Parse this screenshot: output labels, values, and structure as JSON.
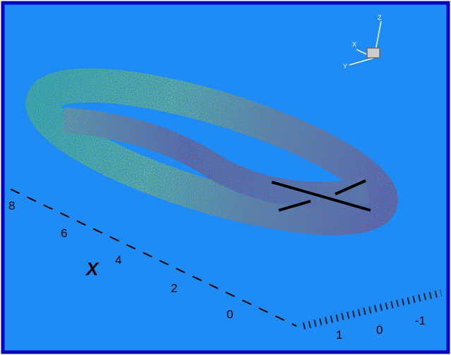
{
  "axes": {
    "x": {
      "title": "X",
      "ticks": [
        "8",
        "6",
        "4",
        "2",
        "0"
      ]
    },
    "y": {
      "ticks": [
        "1",
        "0",
        "-1"
      ]
    }
  },
  "orientation": {
    "labels": [
      "Z",
      "X",
      "Y"
    ]
  }
}
